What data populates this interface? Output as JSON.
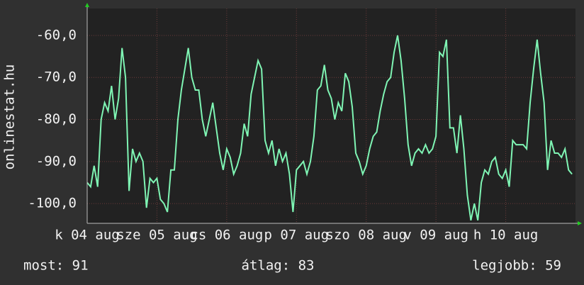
{
  "chart_data": {
    "type": "line",
    "y_label": "onlinestat.hu",
    "x": [
      0,
      1.2,
      2.4,
      3.6,
      4.8,
      6,
      7.2,
      8.4,
      9.6,
      10.8,
      12,
      13.2,
      14.4,
      15.6,
      16.8,
      18,
      19.2,
      20.4,
      21.6,
      22.8,
      24,
      25.2,
      26.4,
      27.6,
      28.8,
      30,
      31.2,
      32.4,
      33.6,
      34.8,
      36,
      37.2,
      38.4,
      39.6,
      40.8,
      42,
      43.2,
      44.4,
      45.6,
      46.8,
      48,
      49.2,
      50.4,
      51.6,
      52.8,
      54,
      55.2,
      56.4,
      57.6,
      58.8,
      60,
      61.2,
      62.4,
      63.6,
      64.8,
      66,
      67.2,
      68.4,
      69.6,
      70.8,
      72,
      73.2,
      74.4,
      75.6,
      76.8,
      78,
      79.2,
      80.4,
      81.6,
      82.8,
      84,
      85.2,
      86.4,
      87.6,
      88.8,
      90,
      91.2,
      92.4,
      93.6,
      94.8,
      96,
      97.2,
      98.4,
      99.6,
      100.8,
      102,
      103.2,
      104.4,
      105.6,
      106.8,
      108,
      109.2,
      110.4,
      111.6,
      112.8,
      114,
      115.2,
      116.4,
      117.6,
      118.8,
      120,
      121.2,
      122.4,
      123.6,
      124.8,
      126,
      127.2,
      128.4,
      129.6,
      130.8,
      132,
      133.2,
      134.4,
      135.6,
      136.8,
      138,
      139.2,
      140.4,
      141.6,
      142.8,
      144,
      145.2,
      146.4,
      147.6,
      148.8,
      150,
      151.2,
      152.4,
      153.6,
      154.8,
      156,
      157.2,
      158.4,
      159.6,
      160.8,
      162,
      163.2,
      164.4,
      165.6,
      166.8
    ],
    "series": [
      {
        "name": "onlinestat.hu",
        "color": "#7ff5b4",
        "values": [
          -95,
          -96,
          -91,
          -96,
          -80,
          -76,
          -78,
          -72,
          -80,
          -75,
          -63,
          -70,
          -97,
          -87,
          -90,
          -88,
          -90,
          -101,
          -94,
          -95,
          -94,
          -99,
          -100,
          -102,
          -92,
          -92,
          -80,
          -73,
          -68,
          -63,
          -70,
          -73,
          -73,
          -80,
          -84,
          -80,
          -76,
          -82,
          -88,
          -92,
          -87,
          -89,
          -93,
          -91,
          -88,
          -81,
          -84,
          -74,
          -70,
          -66,
          -68,
          -85,
          -88,
          -85,
          -91,
          -87,
          -90,
          -88,
          -93,
          -102,
          -92,
          -91,
          -90,
          -93,
          -90,
          -84,
          -73,
          -72,
          -67,
          -73,
          -75,
          -80,
          -76,
          -78,
          -69,
          -71,
          -77,
          -88,
          -90,
          -93,
          -91,
          -87,
          -84,
          -83,
          -78,
          -74,
          -71,
          -70,
          -64,
          -60,
          -66,
          -75,
          -86,
          -91,
          -88,
          -87,
          -88,
          -86,
          -88,
          -87,
          -84,
          -64,
          -65,
          -61,
          -82,
          -82,
          -88,
          -79,
          -87,
          -98,
          -104,
          -100,
          -104,
          -95,
          -92,
          -93,
          -90,
          -89,
          -93,
          -94,
          -92,
          -96,
          -85,
          -86,
          -86,
          -86,
          -87,
          -76,
          -68,
          -61,
          -69,
          -76,
          -92,
          -85,
          -88,
          -88,
          -89,
          -87,
          -92,
          -93
        ]
      }
    ],
    "xlim": [
      0,
      168
    ],
    "xticks": [
      {
        "value": 0,
        "label": "k 04 aug"
      },
      {
        "value": 24,
        "label": "sze 05 aug"
      },
      {
        "value": 48,
        "label": "cs 06 aug"
      },
      {
        "value": 72,
        "label": "p 07 aug"
      },
      {
        "value": 96,
        "label": "szo 08 aug"
      },
      {
        "value": 120,
        "label": "v 09 aug"
      },
      {
        "value": 144,
        "label": "h 10 aug"
      }
    ],
    "ylim": [
      -104.7,
      -53.6
    ],
    "yticks": [
      {
        "value": -100,
        "label": "-100,0"
      },
      {
        "value": -90,
        "label": "-90,0"
      },
      {
        "value": -80,
        "label": "-80,0"
      },
      {
        "value": -70,
        "label": "-70,0"
      },
      {
        "value": -60,
        "label": "-60,0"
      }
    ],
    "grid": true,
    "footer": [
      "most: 91",
      "átlag: 83",
      "legjobb: 59"
    ]
  }
}
